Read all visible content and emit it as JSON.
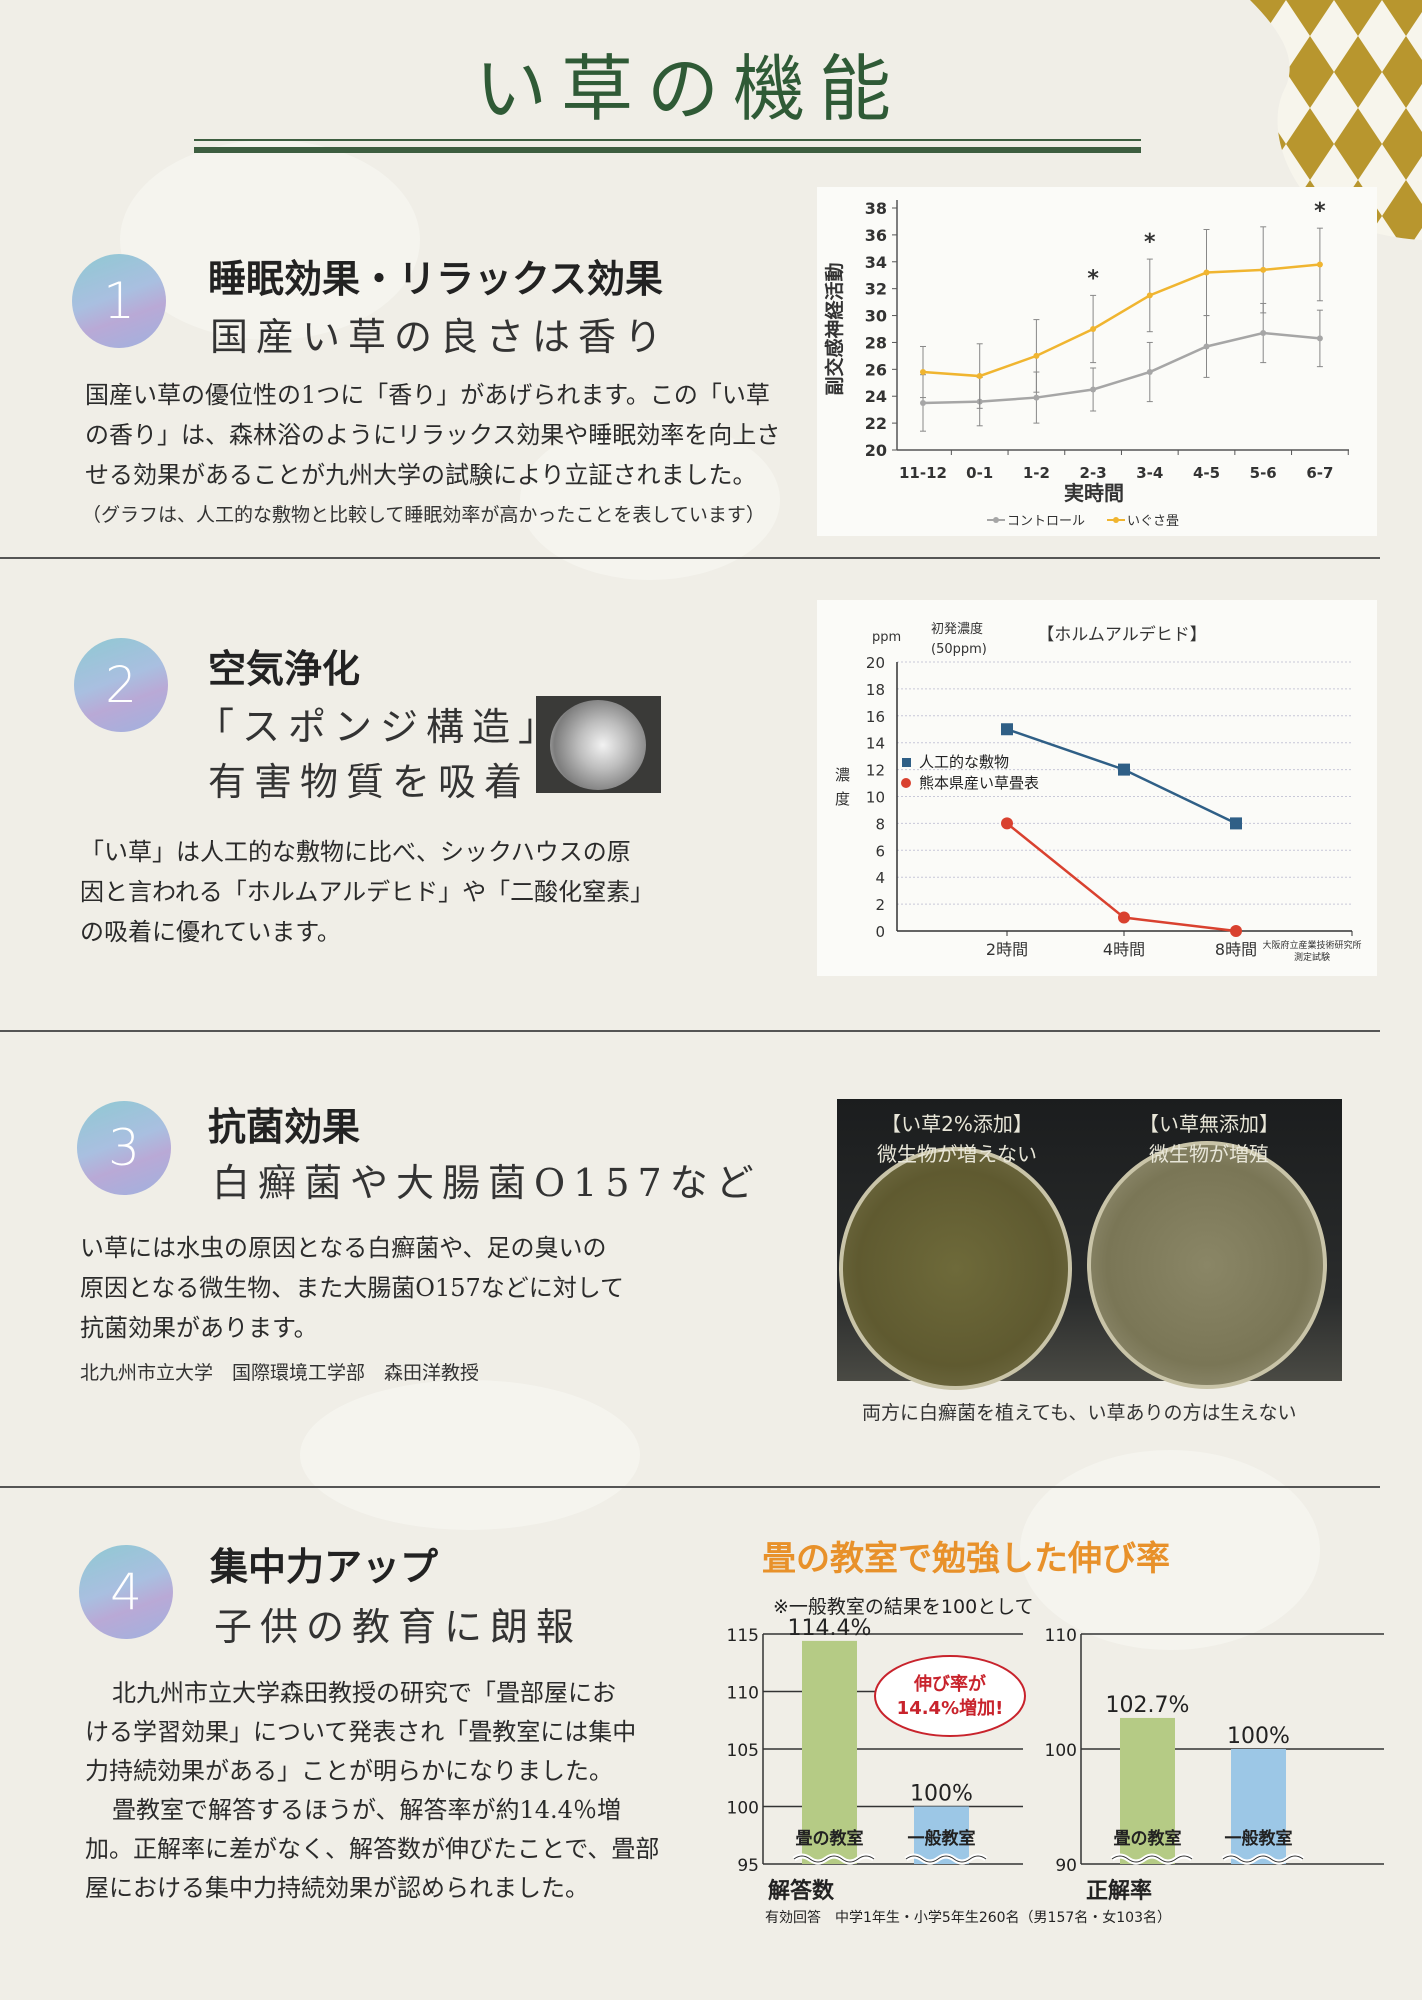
{
  "page": {
    "title": "い草の機能",
    "colors": {
      "title_green": "#2f5a36",
      "gold": "#b8962e",
      "accent_orange": "#e8912a"
    }
  },
  "sections": [
    {
      "number": "1",
      "heading": "睡眠効果・リラックス効果",
      "subheading": "国産い草の良さは香り",
      "body": [
        "国産い草の優位性の1つに「香り」があげられます。この「い草",
        "の香り」は、森林浴のようにリラックス効果や睡眠効率を向上さ",
        "せる効果があることが九州大学の試験により立証されました。"
      ],
      "note": "（グラフは、人工的な敷物と比較して睡眠効率が高かったことを表しています）"
    },
    {
      "number": "2",
      "heading": "空気浄化",
      "subheading": [
        "「スポンジ構造」",
        "有害物質を吸着"
      ],
      "body": [
        "「い草」は人工的な敷物に比べ、シックハウスの原",
        "因と言われる「ホルムアルデヒド」や「二酸化窒素」",
        "の吸着に優れています。"
      ]
    },
    {
      "number": "3",
      "heading": "抗菌効果",
      "subheading": "白癬菌や大腸菌O157など",
      "body": [
        "い草には水虫の原因となる白癬菌や、足の臭いの",
        "原因となる微生物、また大腸菌O157などに対して",
        "抗菌効果があります。"
      ],
      "credit": "北九州市立大学　国際環境工学部　森田洋教授",
      "photo": {
        "left_label": [
          "【い草2%添加】",
          "微生物が増えない"
        ],
        "right_label": [
          "【い草無添加】",
          "微生物が増殖"
        ],
        "caption": "両方に白癬菌を植えても、い草ありの方は生えない"
      }
    },
    {
      "number": "4",
      "heading": "集中力アップ",
      "subheading": "子供の教育に朗報",
      "body": [
        "北九州市立大学森田教授の研究で「畳部屋にお",
        "ける学習効果」について発表され「畳教室には集中",
        "力持続効果がある」ことが明らかになりました。",
        "畳教室で解答するほうが、解答率が約14.4％増",
        "加。正解率に差がなく、解答数が伸びたことで、畳部",
        "屋における集中力持続効果が認められました。"
      ]
    }
  ],
  "chart_data": [
    {
      "type": "line",
      "xlabel": "実時間",
      "ylabel": "副交感神経活動",
      "categories": [
        "11-12",
        "0-1",
        "1-2",
        "2-3",
        "3-4",
        "4-5",
        "5-6",
        "6-7"
      ],
      "ylim": [
        20,
        38
      ],
      "yticks": [
        20,
        22,
        24,
        26,
        28,
        30,
        32,
        34,
        36,
        38
      ],
      "series": [
        {
          "name": "コントロール",
          "color": "#a6a6a6",
          "values": [
            23.5,
            23.6,
            23.9,
            24.5,
            25.8,
            27.7,
            28.7,
            28.3
          ],
          "error": [
            2.1,
            1.8,
            1.9,
            1.6,
            2.2,
            2.3,
            2.2,
            2.1
          ]
        },
        {
          "name": "いぐさ畳",
          "color": "#f0b530",
          "values": [
            25.8,
            25.5,
            27.0,
            29.0,
            31.5,
            33.2,
            33.4,
            33.8
          ],
          "error": [
            1.9,
            2.4,
            2.7,
            2.5,
            2.7,
            3.2,
            3.2,
            2.7
          ]
        }
      ],
      "significance": {
        "marker": "*",
        "categories": [
          "2-3",
          "3-4",
          "6-7"
        ]
      },
      "legend": "bottom",
      "grid": false
    },
    {
      "type": "line",
      "title": "【ホルムアルデヒド】",
      "unit": "ppm",
      "initial_note": [
        "初発濃度",
        "(50ppm)"
      ],
      "ylabel": "濃度",
      "categories": [
        "2時間",
        "4時間",
        "8時間"
      ],
      "ylim": [
        0,
        20
      ],
      "yticks": [
        0,
        2,
        4,
        6,
        8,
        10,
        12,
        14,
        16,
        18,
        20
      ],
      "series": [
        {
          "name": "人工的な敷物",
          "color": "#2f5f86",
          "marker": "square",
          "values": [
            15,
            12,
            8
          ]
        },
        {
          "name": "熊本県産い草畳表",
          "color": "#d9412f",
          "marker": "circle",
          "values": [
            8,
            1,
            0
          ]
        }
      ],
      "source": [
        "大阪府立産業技術研究所",
        "測定試験"
      ],
      "legend": "left",
      "grid": true
    },
    {
      "type": "bar",
      "title": "畳の教室で勉強した伸び率",
      "subtitle": "※一般教室の結果を100として",
      "callout": [
        "伸び率が",
        "14.4%増加!"
      ],
      "footnote": "有効回答　中学1年生・小学5年生260名（男157名・女103名）",
      "charts": [
        {
          "xlabel": "解答数",
          "ylim": [
            95,
            115
          ],
          "yticks": [
            95,
            100,
            105,
            110,
            115
          ],
          "categories": [
            "畳の教室",
            "一般教室"
          ],
          "values": [
            114.4,
            100
          ],
          "labels": [
            "114.4%",
            "100%"
          ],
          "colors": [
            "#b5cb85",
            "#9cc7e6"
          ]
        },
        {
          "xlabel": "正解率",
          "ylim": [
            90,
            110
          ],
          "yticks": [
            90,
            100,
            110
          ],
          "categories": [
            "畳の教室",
            "一般教室"
          ],
          "values": [
            102.7,
            100
          ],
          "labels": [
            "102.7%",
            "100%"
          ],
          "colors": [
            "#b5cb85",
            "#9cc7e6"
          ]
        }
      ]
    }
  ]
}
